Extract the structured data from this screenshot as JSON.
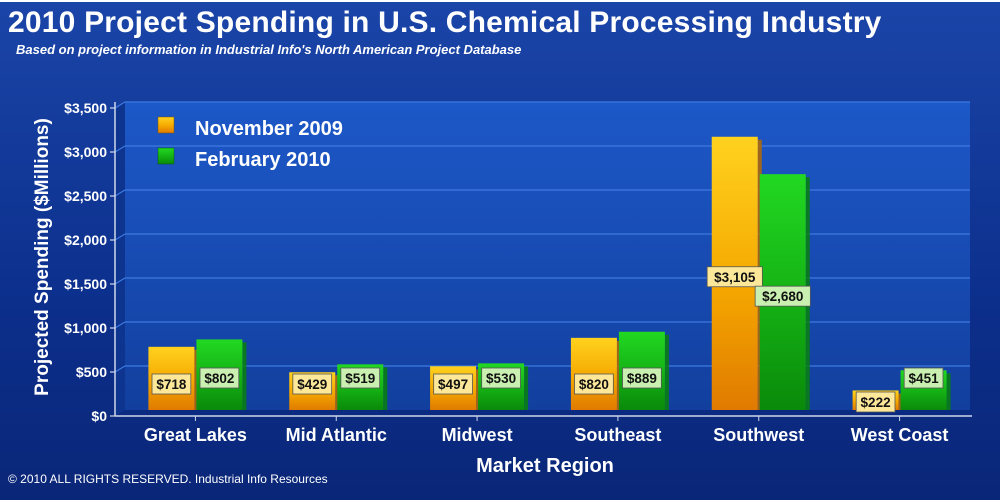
{
  "header": {
    "title": "2010 Project Spending in U.S. Chemical Processing Industry",
    "subtitle": "Based on project information in Industrial Info's North American Project Database"
  },
  "footer": {
    "copyright": "© 2010 ALL RIGHTS RESERVED. Industrial Info Resources"
  },
  "colors": {
    "nov2009": "#f7b500",
    "feb2010": "#18c41a",
    "label_nov_bg": "#fde89a",
    "label_feb_bg": "#c9f0b0"
  },
  "chart_data": {
    "type": "bar",
    "title": "2010 Project Spending in U.S. Chemical Processing Industry",
    "xlabel": "Market Region",
    "ylabel": "Projected Spending ($Millions)",
    "ylim": [
      0,
      3500
    ],
    "yticks": [
      0,
      500,
      1000,
      1500,
      2000,
      2500,
      3000,
      3500
    ],
    "ytick_labels": [
      "$0",
      "$500",
      "$1,000",
      "$1,500",
      "$2,000",
      "$2,500",
      "$3,000",
      "$3,500"
    ],
    "categories": [
      "Great Lakes",
      "Mid Atlantic",
      "Midwest",
      "Southeast",
      "Southwest",
      "West Coast"
    ],
    "series": [
      {
        "name": "November 2009",
        "values": [
          718,
          429,
          497,
          820,
          3105,
          222
        ],
        "labels": [
          "$718",
          "$429",
          "$497",
          "$820",
          "$3,105",
          "$222"
        ]
      },
      {
        "name": "February 2010",
        "values": [
          802,
          519,
          530,
          889,
          2680,
          451
        ],
        "labels": [
          "$802",
          "$519",
          "$530",
          "$889",
          "$2,680",
          "$451"
        ]
      }
    ],
    "legend": [
      "November 2009",
      "February 2010"
    ],
    "legend_position": "top-left",
    "grid": true
  }
}
